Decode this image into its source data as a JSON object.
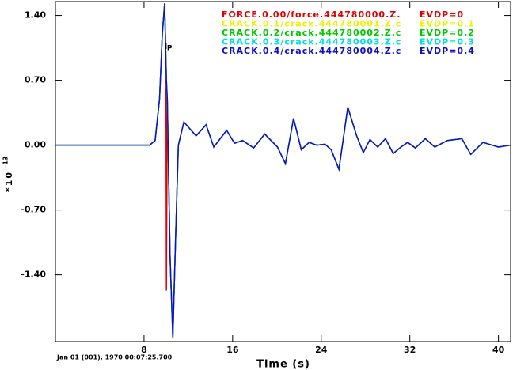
{
  "chart_data": {
    "type": "line",
    "xlabel": "Time (s)",
    "ylabel": "*10",
    "ylabel_power": "-13",
    "date_label": "Jan 01 (001), 1970 00:07:25.700",
    "pick": {
      "label": "P",
      "x": 10.0
    },
    "xlim": [
      0,
      41.1
    ],
    "ylim": [
      -2.12,
      1.55
    ],
    "xticks": [
      8,
      16,
      24,
      32,
      40
    ],
    "yticks": [
      {
        "value": 1.4,
        "label": "1.40"
      },
      {
        "value": 0.7,
        "label": "0.70"
      },
      {
        "value": 0,
        "label": "0.00"
      },
      {
        "value": -0.7,
        "label": "-0.70"
      },
      {
        "value": -1.4,
        "label": "-1.40"
      }
    ],
    "x": [
      0,
      8.5,
      9.0,
      9.4,
      9.65,
      9.86,
      9.98,
      10.02,
      10.1,
      10.35,
      10.6,
      10.85,
      11.1,
      11.6,
      12.7,
      13.6,
      14.3,
      15.46,
      16.17,
      16.9,
      17.9,
      18.9,
      20.05,
      20.77,
      21.5,
      22.2,
      22.9,
      23.6,
      24.35,
      24.9,
      25.6,
      26.4,
      27.2,
      27.8,
      28.4,
      29.1,
      29.8,
      30.5,
      31.2,
      31.8,
      32.5,
      33.4,
      34.25,
      35.4,
      36.7,
      37.5,
      38.6,
      40,
      41.07
    ],
    "series": [
      {
        "name": "FORCE.0.00/force.444780000.Z.",
        "depth_label": "EVDP=0",
        "color": "#e00000",
        "values": [
          0,
          0,
          0.05,
          0.5,
          1.2,
          1.53,
          0.83,
          -1.57,
          0.5,
          -1.2,
          -2.08,
          -1.0,
          0.0,
          0.25,
          0.1,
          0.22,
          -0.02,
          0.16,
          0.02,
          0.05,
          -0.03,
          0.12,
          -0.02,
          -0.2,
          0.29,
          -0.05,
          0.03,
          0,
          0.01,
          -0.05,
          -0.26,
          0.41,
          0.1,
          -0.08,
          0.06,
          -0.02,
          0.07,
          -0.09,
          -0.02,
          0.03,
          -0.03,
          0.07,
          -0.02,
          0.05,
          0.07,
          -0.1,
          0.03,
          -0.02,
          0
        ]
      },
      {
        "name": "CRACK.0.1/crack.444780001.Z.c",
        "depth_label": "EVDP=0.1",
        "color": "#f0f000",
        "values": [
          0,
          0,
          0.05,
          0.5,
          1.2,
          1.53,
          0.9,
          0.7,
          0.5,
          -1.2,
          -2.08,
          -1.0,
          0.0,
          0.25,
          0.1,
          0.22,
          -0.02,
          0.16,
          0.02,
          0.05,
          -0.03,
          0.12,
          -0.02,
          -0.2,
          0.29,
          -0.05,
          0.03,
          0,
          0.01,
          -0.05,
          -0.26,
          0.41,
          0.1,
          -0.08,
          0.06,
          -0.02,
          0.07,
          -0.09,
          -0.02,
          0.03,
          -0.03,
          0.07,
          -0.02,
          0.05,
          0.07,
          -0.1,
          0.03,
          -0.02,
          0
        ]
      },
      {
        "name": "CRACK.0.2/crack.444780002.Z.c",
        "depth_label": "EVDP=0.2",
        "color": "#00c800",
        "values": [
          0,
          0,
          0.05,
          0.5,
          1.2,
          1.53,
          0.9,
          0.7,
          0.5,
          -1.2,
          -2.08,
          -1.0,
          0.0,
          0.25,
          0.1,
          0.22,
          -0.02,
          0.16,
          0.02,
          0.05,
          -0.03,
          0.12,
          -0.02,
          -0.2,
          0.29,
          -0.05,
          0.03,
          0,
          0.01,
          -0.05,
          -0.26,
          0.41,
          0.1,
          -0.08,
          0.06,
          -0.02,
          0.07,
          -0.09,
          -0.02,
          0.03,
          -0.03,
          0.07,
          -0.02,
          0.05,
          0.07,
          -0.1,
          0.03,
          -0.02,
          0
        ]
      },
      {
        "name": "CRACK.0.3/crack.444780003.Z.c",
        "depth_label": "EVDP=0.3",
        "color": "#00e0e0",
        "values": [
          0,
          0,
          0.05,
          0.5,
          1.2,
          1.53,
          0.9,
          0.7,
          0.5,
          -1.2,
          -2.08,
          -1.0,
          0.0,
          0.25,
          0.1,
          0.22,
          -0.02,
          0.16,
          0.02,
          0.05,
          -0.03,
          0.12,
          -0.02,
          -0.2,
          0.29,
          -0.05,
          0.03,
          0,
          0.01,
          -0.05,
          -0.26,
          0.41,
          0.1,
          -0.08,
          0.06,
          -0.02,
          0.07,
          -0.09,
          -0.02,
          0.03,
          -0.03,
          0.07,
          -0.02,
          0.05,
          0.07,
          -0.1,
          0.03,
          -0.02,
          0
        ]
      },
      {
        "name": "CRACK.0.4/crack.444780004.Z.c",
        "depth_label": "EVDP=0.4",
        "color": "#1010c8",
        "values": [
          0,
          0,
          0.05,
          0.5,
          1.2,
          1.53,
          0.9,
          0.7,
          0.5,
          -1.2,
          -2.08,
          -1.0,
          0.0,
          0.25,
          0.1,
          0.22,
          -0.02,
          0.16,
          0.02,
          0.05,
          -0.03,
          0.12,
          -0.02,
          -0.2,
          0.29,
          -0.05,
          0.03,
          0,
          0.01,
          -0.05,
          -0.26,
          0.41,
          0.1,
          -0.08,
          0.06,
          -0.02,
          0.07,
          -0.09,
          -0.02,
          0.03,
          -0.03,
          0.07,
          -0.02,
          0.05,
          0.07,
          -0.1,
          0.03,
          -0.02,
          0
        ]
      }
    ]
  }
}
